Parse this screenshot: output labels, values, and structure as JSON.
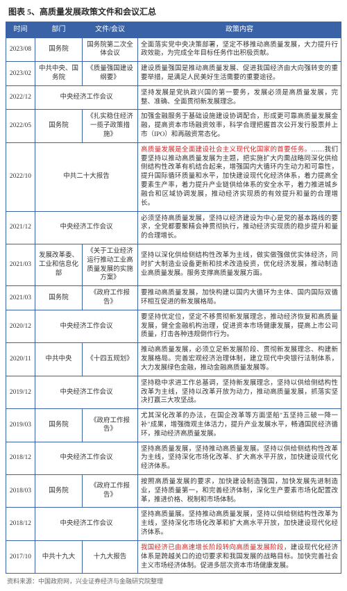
{
  "title": "图表 5、高质量发展政策文件和会议汇总",
  "columns": [
    "时间",
    "部门",
    "文件/会议",
    "政策内容"
  ],
  "rows": [
    {
      "time": "2023/08",
      "dept": "国务院",
      "doc": "国务院第二次全体会议",
      "content": "全面落实党中央决策部署，坚定不移推动高质量发展，大力提升行政效能，为完成全年目标任务作出积极贡献。"
    },
    {
      "time": "2023/02",
      "dept": "中共中央、国务院",
      "doc": "《质量强国建设纲要》",
      "content": "建设质量强国是推动高质量发展、促进我国经济由大向强转变的重要举措，是满足人民美好生活需要的重要途径。"
    },
    {
      "time": "2022/12",
      "dept": "",
      "doc": "中央经济工作会议",
      "content": "坚持发展是党执政兴国的第一要务，发展必须是高质量发展，完整、准确、全面贯彻新发展理念。",
      "mergeDeptDoc": true
    },
    {
      "time": "2022/05",
      "dept": "国务院",
      "doc": "《扎实稳住经济一揽子政策措施》",
      "content": "加强金融服务于基础设施建设协调配合，形成更可靠高质量发展金融，提高资本市场融资效率，科学合理把握首次公开发行股票并上市（IPO）和再融资常态化。"
    },
    {
      "time": "2022/10",
      "dept": "",
      "doc": "中共二十大报告",
      "content": "",
      "mergeDeptDoc": true,
      "hl": "高质量发展是全面建设社会主义现代化国家的首要任务。",
      "rest": "……我们要坚持以推动高质量发展为主题，把实施扩大内需战略同深化供给侧结构性改革有机结合起来，增强国内大循环内生动力和可靠性，提升国际循环质量和水平，加快建设现代化经济体系，着力提高全要素生产率，着力提升产业链供给体系的安全水平，着力推进城乡融合和区域协调发展，推动经济实现质的有效提升和量的合理增长。"
    },
    {
      "time": "2021/12",
      "dept": "",
      "doc": "中央经济工作会议",
      "content": "必须坚持高质量发展，坚持以经济建设为中心是党的基本路线的要求，全党都要聚精会神贯彻执行，推动经济实现质的稳步提升和量的合理增长。",
      "mergeDeptDoc": true
    },
    {
      "time": "2021/03",
      "dept": "发展改革委、工业和信息化部",
      "doc": "《关于工业经济运行推动工业高质量发展的实施方案》",
      "content": "坚持以深化供给侧结构性改革为主线，做实做强做优实体经济，同时扩大制造业设备更新和技术改造投资，优化经济发展，推动制造业高质量发展。服务支撑高质量发展方面。"
    },
    {
      "time": "2021/03",
      "dept": "国务院",
      "doc": "《政府工作报告》",
      "content": "要推动高质量发展，加快构建以国内大循环为主体、国内国际双循环相互促进的新发展格局。"
    },
    {
      "time": "2020/12",
      "dept": "",
      "doc": "中央经济工作会议",
      "content": "要坚持优定位，坚定不移贯彻新发展理念，推动经济恢复和高质量发展，健全金融机构治理，促进资本市场健康发展，提高上市公司质量，打击各种违规倒作行为。",
      "mergeDeptDoc": true
    },
    {
      "time": "2020/11",
      "dept": "中共中央",
      "doc": "《十四五规划》",
      "content": "推动高质量发展，必须立足新发展阶段、贯彻新发展理念、构建新发展格局。完善宏观经济治理体制，建立现代中央银行法制体系，大力发展绿色金融，推动金融高质量发展等。"
    },
    {
      "time": "2019/12",
      "dept": "",
      "doc": "中央经济工作会议",
      "content": "坚持稳中求进工作总基调，坚持新发展理念，坚持以供给侧结构性改革为主线，坚持以改革开放为动力，推动高质量发展，抓落实坚决打赢三大攻坚战。",
      "mergeDeptDoc": true
    },
    {
      "time": "2019/03",
      "dept": "国务院",
      "doc": "《政府工作报告》",
      "content": "尤其深化改革的办法，在国企改革等方面坚船\"五坚持三破一降一补\"成果，增强微观主体活力，提升产业发展水平，畅通国民经济循环，推动经济高质量发展。"
    },
    {
      "time": "2018/12",
      "dept": "",
      "doc": "中央经济工作会议",
      "content": "坚持高质量发展，坚持推动高质量发展。坚持以供给侧结构性改革为主线，坚持深化市场化改革、扩大高水平开放，加快建设现代化经济体系。",
      "mergeDeptDoc": true
    },
    {
      "time": "2018/03",
      "dept": "国务院",
      "doc": "《政府工作报告》",
      "content": "按照高质量发展的要求，加快建设制造强国，加快发展先进制造业，坚持质量第一，和完善经济体制，深化生产要素市场化配置改革，推进价格、税制和市场体制。"
    },
    {
      "time": "2018/12",
      "dept": "",
      "doc": "中央经济工作会议",
      "content": "坚持高质量展。坚持推动高质量发展，坚持以供给侧结构性改革为主线，坚持深化市场化改革和扩大高水平开放，加快建设现代化经济体系。",
      "mergeDeptDoc": true
    },
    {
      "time": "2017/10",
      "dept": "中共十九大",
      "doc": "十九大报告",
      "content": "",
      "hl": "我国经济已由高速增长阶段转向高质量发展阶段，",
      "rest": "建设现代化经济体系是跨越关口的迫切要求和我国发展的战略目标。加快完善社会主义市场经济体制。促进多层次资本市场健康发展。"
    }
  ],
  "footnote": "资料来源：中国政府网，兴业证券经济与金融研究院整理",
  "colors": {
    "header_bg": "#3a62a6",
    "border": "#3a62a6",
    "highlight": "#d02828"
  }
}
